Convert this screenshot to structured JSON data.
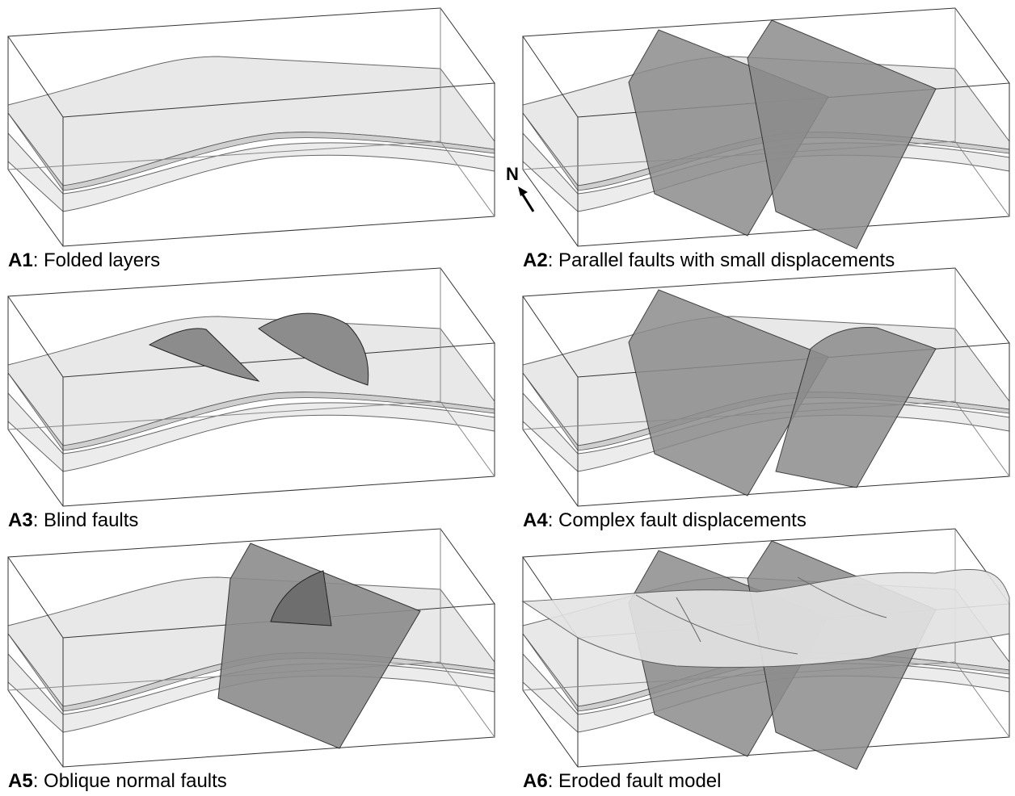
{
  "panels": [
    {
      "label": "A1",
      "caption": ": Folded layers"
    },
    {
      "label": "A2",
      "caption": ": Parallel faults with small displacements"
    },
    {
      "label": "A3",
      "caption": ": Blind faults"
    },
    {
      "label": "A4",
      "caption": ": Complex fault displacements"
    },
    {
      "label": "A5",
      "caption": ": Oblique normal faults"
    },
    {
      "label": "A6",
      "caption": ": Eroded fault model"
    }
  ],
  "north_arrow": {
    "label": "N"
  }
}
